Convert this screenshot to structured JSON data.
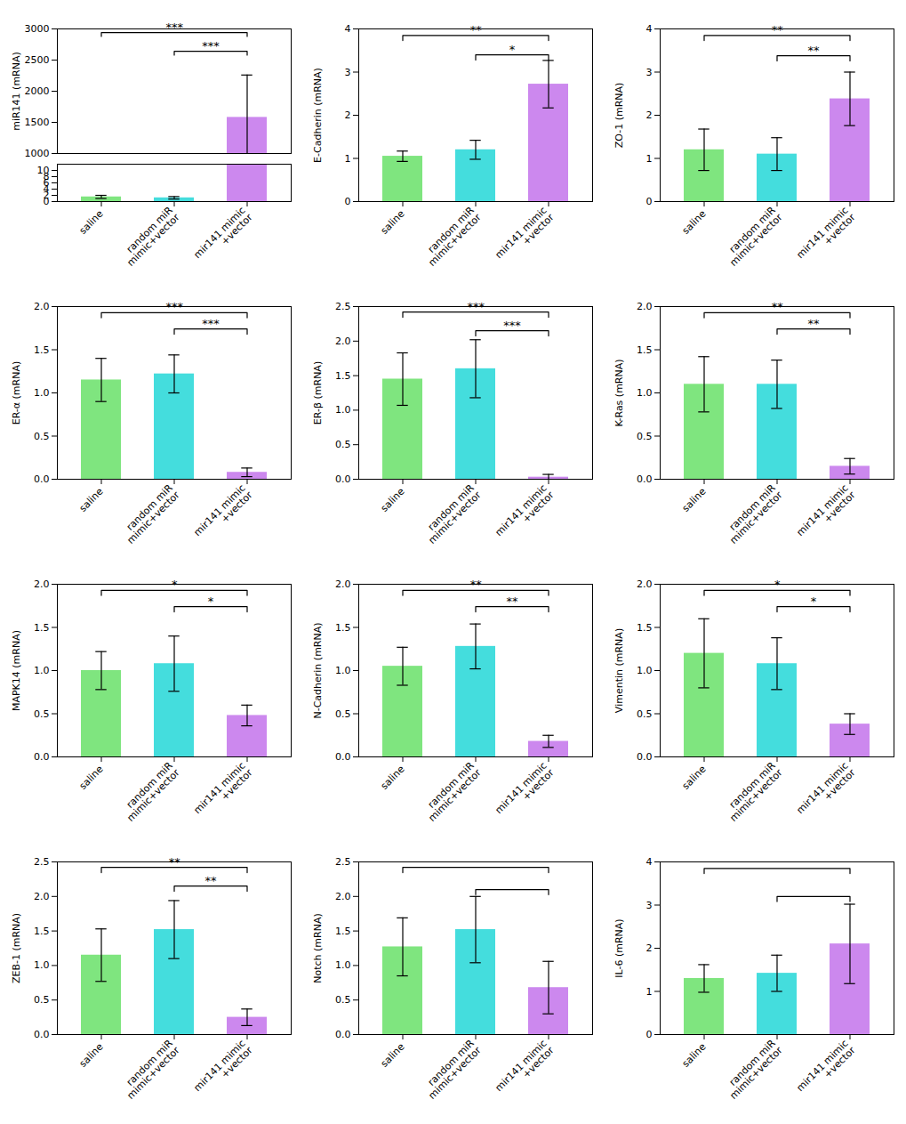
{
  "chart_data": [
    {
      "type": "bar",
      "ylabel": "miR141 (mRNA)",
      "categories": [
        "saline",
        "random miR\nmimic+vector",
        "mir141 mimic\n+vector"
      ],
      "values": [
        1.5,
        1.2,
        1580
      ],
      "errors": [
        0.5,
        0.4,
        680
      ],
      "colors": [
        "#7FE57F",
        "#44DDDD",
        "#CC88EE"
      ],
      "panels": [
        {
          "ylim": [
            1000,
            3000
          ],
          "yticks": [
            1000,
            1500,
            2000,
            2500,
            3000
          ]
        },
        {
          "ylim": [
            0,
            12
          ],
          "yticks": [
            0,
            2,
            4,
            6,
            8,
            10
          ]
        }
      ],
      "annotations": [
        {
          "from": "saline",
          "to": "mir141 mimic\n+vector",
          "y": 2940,
          "text": "***"
        },
        {
          "from": "random miR\nmimic+vector",
          "to": "mir141 mimic\n+vector",
          "y": 2640,
          "text": "***"
        }
      ]
    },
    {
      "type": "bar",
      "ylabel": "E-Cadherin (mRNA)",
      "categories": [
        "saline",
        "random miR\nmimic+vector",
        "mir141 mimic\n+vector"
      ],
      "values": [
        1.05,
        1.2,
        2.72
      ],
      "errors": [
        0.12,
        0.22,
        0.55
      ],
      "colors": [
        "#7FE57F",
        "#44DDDD",
        "#CC88EE"
      ],
      "ylim": [
        0,
        4
      ],
      "yticks": [
        0,
        1,
        2,
        3,
        4
      ],
      "annotations": [
        {
          "from": "saline",
          "to": "mir141 mimic\n+vector",
          "y": 3.85,
          "text": "**"
        },
        {
          "from": "random miR\nmimic+vector",
          "to": "mir141 mimic\n+vector",
          "y": 3.4,
          "text": "*"
        }
      ]
    },
    {
      "type": "bar",
      "ylabel": "ZO-1 (mRNA)",
      "categories": [
        "saline",
        "random miR\nmimic+vector",
        "mir141 mimic\n+vector"
      ],
      "values": [
        1.2,
        1.1,
        2.38
      ],
      "errors": [
        0.48,
        0.38,
        0.62
      ],
      "colors": [
        "#7FE57F",
        "#44DDDD",
        "#CC88EE"
      ],
      "ylim": [
        0,
        4
      ],
      "yticks": [
        0,
        1,
        2,
        3,
        4
      ],
      "annotations": [
        {
          "from": "saline",
          "to": "mir141 mimic\n+vector",
          "y": 3.85,
          "text": "**"
        },
        {
          "from": "random miR\nmimic+vector",
          "to": "mir141 mimic\n+vector",
          "y": 3.38,
          "text": "**"
        }
      ]
    },
    {
      "type": "bar",
      "ylabel": "ER-α (mRNA)",
      "categories": [
        "saline",
        "random miR\nmimic+vector",
        "mir141 mimic\n+vector"
      ],
      "values": [
        1.15,
        1.22,
        0.08
      ],
      "errors": [
        0.25,
        0.22,
        0.05
      ],
      "colors": [
        "#7FE57F",
        "#44DDDD",
        "#CC88EE"
      ],
      "ylim": [
        0,
        2
      ],
      "yticks": [
        {
          "value": 0,
          "label": "0.0"
        },
        0.5,
        {
          "value": 1,
          "label": "1.0"
        },
        1.5,
        {
          "value": 2,
          "label": "2.0"
        }
      ],
      "annotations": [
        {
          "from": "saline",
          "to": "mir141 mimic\n+vector",
          "y": 1.93,
          "text": "***"
        },
        {
          "from": "random miR\nmimic+vector",
          "to": "mir141 mimic\n+vector",
          "y": 1.74,
          "text": "***"
        }
      ]
    },
    {
      "type": "bar",
      "ylabel": "ER-β (mRNA)",
      "categories": [
        "saline",
        "random miR\nmimic+vector",
        "mir141 mimic\n+vector"
      ],
      "values": [
        1.45,
        1.6,
        0.03
      ],
      "errors": [
        0.38,
        0.42,
        0.04
      ],
      "colors": [
        "#7FE57F",
        "#44DDDD",
        "#CC88EE"
      ],
      "ylim": [
        0,
        2.5
      ],
      "yticks": [
        {
          "value": 0,
          "label": "0.0"
        },
        0.5,
        {
          "value": 1,
          "label": "1.0"
        },
        1.5,
        {
          "value": 2,
          "label": "2.0"
        },
        2.5
      ],
      "annotations": [
        {
          "from": "saline",
          "to": "mir141 mimic\n+vector",
          "y": 2.42,
          "text": "***"
        },
        {
          "from": "random miR\nmimic+vector",
          "to": "mir141 mimic\n+vector",
          "y": 2.15,
          "text": "***"
        }
      ]
    },
    {
      "type": "bar",
      "ylabel": "K-Ras (mRNA)",
      "categories": [
        "saline",
        "random miR\nmimic+vector",
        "mir141 mimic\n+vector"
      ],
      "values": [
        1.1,
        1.1,
        0.15
      ],
      "errors": [
        0.32,
        0.28,
        0.09
      ],
      "colors": [
        "#7FE57F",
        "#44DDDD",
        "#CC88EE"
      ],
      "ylim": [
        0,
        2
      ],
      "yticks": [
        {
          "value": 0,
          "label": "0.0"
        },
        0.5,
        {
          "value": 1,
          "label": "1.0"
        },
        1.5,
        {
          "value": 2,
          "label": "2.0"
        }
      ],
      "annotations": [
        {
          "from": "saline",
          "to": "mir141 mimic\n+vector",
          "y": 1.93,
          "text": "**"
        },
        {
          "from": "random miR\nmimic+vector",
          "to": "mir141 mimic\n+vector",
          "y": 1.74,
          "text": "**"
        }
      ]
    },
    {
      "type": "bar",
      "ylabel": "MAPK14 (mRNA)",
      "categories": [
        "saline",
        "random miR\nmimic+vector",
        "mir141 mimic\n+vector"
      ],
      "values": [
        1.0,
        1.08,
        0.48
      ],
      "errors": [
        0.22,
        0.32,
        0.12
      ],
      "colors": [
        "#7FE57F",
        "#44DDDD",
        "#CC88EE"
      ],
      "ylim": [
        0,
        2
      ],
      "yticks": [
        {
          "value": 0,
          "label": "0.0"
        },
        0.5,
        {
          "value": 1,
          "label": "1.0"
        },
        1.5,
        {
          "value": 2,
          "label": "2.0"
        }
      ],
      "annotations": [
        {
          "from": "saline",
          "to": "mir141 mimic\n+vector",
          "y": 1.93,
          "text": "*"
        },
        {
          "from": "random miR\nmimic+vector",
          "to": "mir141 mimic\n+vector",
          "y": 1.74,
          "text": "*"
        }
      ]
    },
    {
      "type": "bar",
      "ylabel": "N-Cadherin (mRNA)",
      "categories": [
        "saline",
        "random miR\nmimic+vector",
        "mir141 mimic\n+vector"
      ],
      "values": [
        1.05,
        1.28,
        0.18
      ],
      "errors": [
        0.22,
        0.26,
        0.07
      ],
      "colors": [
        "#7FE57F",
        "#44DDDD",
        "#CC88EE"
      ],
      "ylim": [
        0,
        2
      ],
      "yticks": [
        {
          "value": 0,
          "label": "0.0"
        },
        0.5,
        {
          "value": 1,
          "label": "1.0"
        },
        1.5,
        {
          "value": 2,
          "label": "2.0"
        }
      ],
      "annotations": [
        {
          "from": "saline",
          "to": "mir141 mimic\n+vector",
          "y": 1.93,
          "text": "**"
        },
        {
          "from": "random miR\nmimic+vector",
          "to": "mir141 mimic\n+vector",
          "y": 1.74,
          "text": "**"
        }
      ]
    },
    {
      "type": "bar",
      "ylabel": "Vimentin (mRNA)",
      "categories": [
        "saline",
        "random miR\nmimic+vector",
        "mir141 mimic\n+vector"
      ],
      "values": [
        1.2,
        1.08,
        0.38
      ],
      "errors": [
        0.4,
        0.3,
        0.12
      ],
      "colors": [
        "#7FE57F",
        "#44DDDD",
        "#CC88EE"
      ],
      "ylim": [
        0,
        2
      ],
      "yticks": [
        {
          "value": 0,
          "label": "0.0"
        },
        0.5,
        {
          "value": 1,
          "label": "1.0"
        },
        1.5,
        {
          "value": 2,
          "label": "2.0"
        }
      ],
      "annotations": [
        {
          "from": "saline",
          "to": "mir141 mimic\n+vector",
          "y": 1.93,
          "text": "*"
        },
        {
          "from": "random miR\nmimic+vector",
          "to": "mir141 mimic\n+vector",
          "y": 1.74,
          "text": "*"
        }
      ]
    },
    {
      "type": "bar",
      "ylabel": "ZEB-1 (mRNA)",
      "categories": [
        "saline",
        "random miR\nmimic+vector",
        "mir141 mimic\n+vector"
      ],
      "values": [
        1.15,
        1.52,
        0.25
      ],
      "errors": [
        0.38,
        0.42,
        0.12
      ],
      "colors": [
        "#7FE57F",
        "#44DDDD",
        "#CC88EE"
      ],
      "ylim": [
        0,
        2.5
      ],
      "yticks": [
        {
          "value": 0,
          "label": "0.0"
        },
        0.5,
        {
          "value": 1,
          "label": "1.0"
        },
        1.5,
        {
          "value": 2,
          "label": "2.0"
        },
        2.5
      ],
      "annotations": [
        {
          "from": "saline",
          "to": "mir141 mimic\n+vector",
          "y": 2.42,
          "text": "**"
        },
        {
          "from": "random miR\nmimic+vector",
          "to": "mir141 mimic\n+vector",
          "y": 2.15,
          "text": "**"
        }
      ]
    },
    {
      "type": "bar",
      "ylabel": "Notch (mRNA)",
      "categories": [
        "saline",
        "random miR\nmimic+vector",
        "mir141 mimic\n+vector"
      ],
      "values": [
        1.27,
        1.52,
        0.68
      ],
      "errors": [
        0.42,
        0.48,
        0.38
      ],
      "colors": [
        "#7FE57F",
        "#44DDDD",
        "#CC88EE"
      ],
      "ylim": [
        0,
        2.5
      ],
      "yticks": [
        {
          "value": 0,
          "label": "0.0"
        },
        0.5,
        {
          "value": 1,
          "label": "1.0"
        },
        1.5,
        {
          "value": 2,
          "label": "2.0"
        },
        2.5
      ],
      "annotations": [
        {
          "from": "saline",
          "to": "mir141 mimic\n+vector",
          "y": 2.42
        },
        {
          "from": "random miR\nmimic+vector",
          "to": "mir141 mimic\n+vector",
          "y": 2.1
        }
      ]
    },
    {
      "type": "bar",
      "ylabel": "IL-6 (mRNA)",
      "categories": [
        "saline",
        "random miR\nmimic+vector",
        "mir141 mimic\n+vector"
      ],
      "values": [
        1.3,
        1.42,
        2.1
      ],
      "errors": [
        0.32,
        0.42,
        0.92
      ],
      "colors": [
        "#7FE57F",
        "#44DDDD",
        "#CC88EE"
      ],
      "ylim": [
        0,
        4
      ],
      "yticks": [
        0,
        1,
        2,
        3,
        4
      ],
      "annotations": [
        {
          "from": "saline",
          "to": "mir141 mimic\n+vector",
          "y": 3.85
        },
        {
          "from": "random miR\nmimic+vector",
          "to": "mir141 mimic\n+vector",
          "y": 3.2
        }
      ]
    }
  ]
}
